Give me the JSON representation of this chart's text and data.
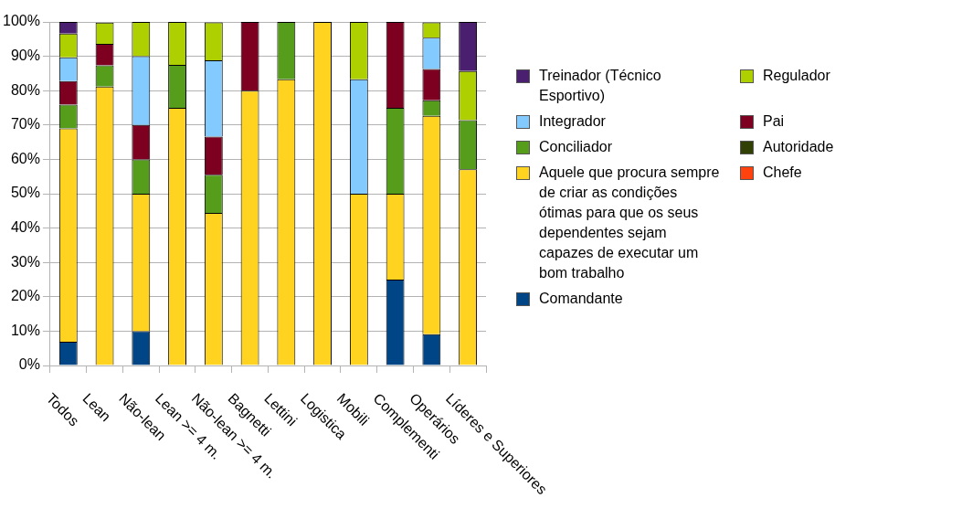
{
  "chart_data": {
    "type": "bar",
    "stacked": true,
    "categories": [
      "Todos",
      "Lean",
      "Não-lean",
      "Lean >= 4 m.",
      "Não-lean >= 4 m.",
      "Bagnetti",
      "Lettini",
      "Logistica",
      "Mobili",
      "Complementi",
      "Operários",
      "Líderes e Superiores"
    ],
    "series": [
      {
        "name": "Comandante",
        "color": "#004586",
        "values": [
          6.9,
          0,
          10,
          0,
          0,
          0,
          0,
          0,
          0,
          25,
          9.1,
          0
        ]
      },
      {
        "name": "Chefe",
        "color": "#ff420e",
        "values": [
          0,
          0,
          0,
          0,
          0,
          0,
          0,
          0,
          0,
          0,
          0,
          0
        ]
      },
      {
        "name": "Aquele que procura sempre de criar as condições ótimas para que os seus dependentes sejam capazes de executar um bom trabalho",
        "color": "#ffd320",
        "values": [
          62.1,
          81.2,
          40,
          75,
          44.4,
          80,
          83.3,
          100,
          50,
          25,
          63.6,
          57.1
        ]
      },
      {
        "name": "Autoridade",
        "color": "#314004",
        "values": [
          0,
          0,
          0,
          0,
          0,
          0,
          0,
          0,
          0,
          0,
          0,
          0
        ]
      },
      {
        "name": "Conciliador",
        "color": "#579d1c",
        "values": [
          6.9,
          6.2,
          10,
          12.5,
          11.1,
          0,
          16.7,
          0,
          0,
          25,
          4.5,
          14.3
        ]
      },
      {
        "name": "Pai",
        "color": "#7e0021",
        "values": [
          6.9,
          6.2,
          10,
          0,
          11.1,
          20,
          0,
          0,
          0,
          25,
          9.1,
          0
        ]
      },
      {
        "name": "Integrador",
        "color": "#83caff",
        "values": [
          6.9,
          0,
          20,
          0,
          22.2,
          0,
          0,
          0,
          33.3,
          0,
          9.1,
          0
        ]
      },
      {
        "name": "Regulador",
        "color": "#aecf00",
        "values": [
          6.9,
          6.2,
          10,
          12.5,
          11.1,
          0,
          0,
          0,
          16.7,
          0,
          4.5,
          14.3
        ]
      },
      {
        "name": "Treinador (Técnico Esportivo)",
        "color": "#4b1f6f",
        "values": [
          3.4,
          0,
          0,
          0,
          0,
          0,
          0,
          0,
          0,
          0,
          0,
          14.3
        ]
      }
    ],
    "ylim": [
      0,
      100
    ],
    "yticks": [
      {
        "value": 0,
        "label": "0%"
      },
      {
        "value": 10,
        "label": "10%"
      },
      {
        "value": 20,
        "label": "20%"
      },
      {
        "value": 30,
        "label": "30%"
      },
      {
        "value": 40,
        "label": "40%"
      },
      {
        "value": 50,
        "label": "50%"
      },
      {
        "value": 60,
        "label": "60%"
      },
      {
        "value": 70,
        "label": "70%"
      },
      {
        "value": 80,
        "label": "80%"
      },
      {
        "value": 90,
        "label": "90%"
      },
      {
        "value": 100,
        "label": "100%"
      }
    ],
    "grid": "y",
    "legend": "right"
  }
}
